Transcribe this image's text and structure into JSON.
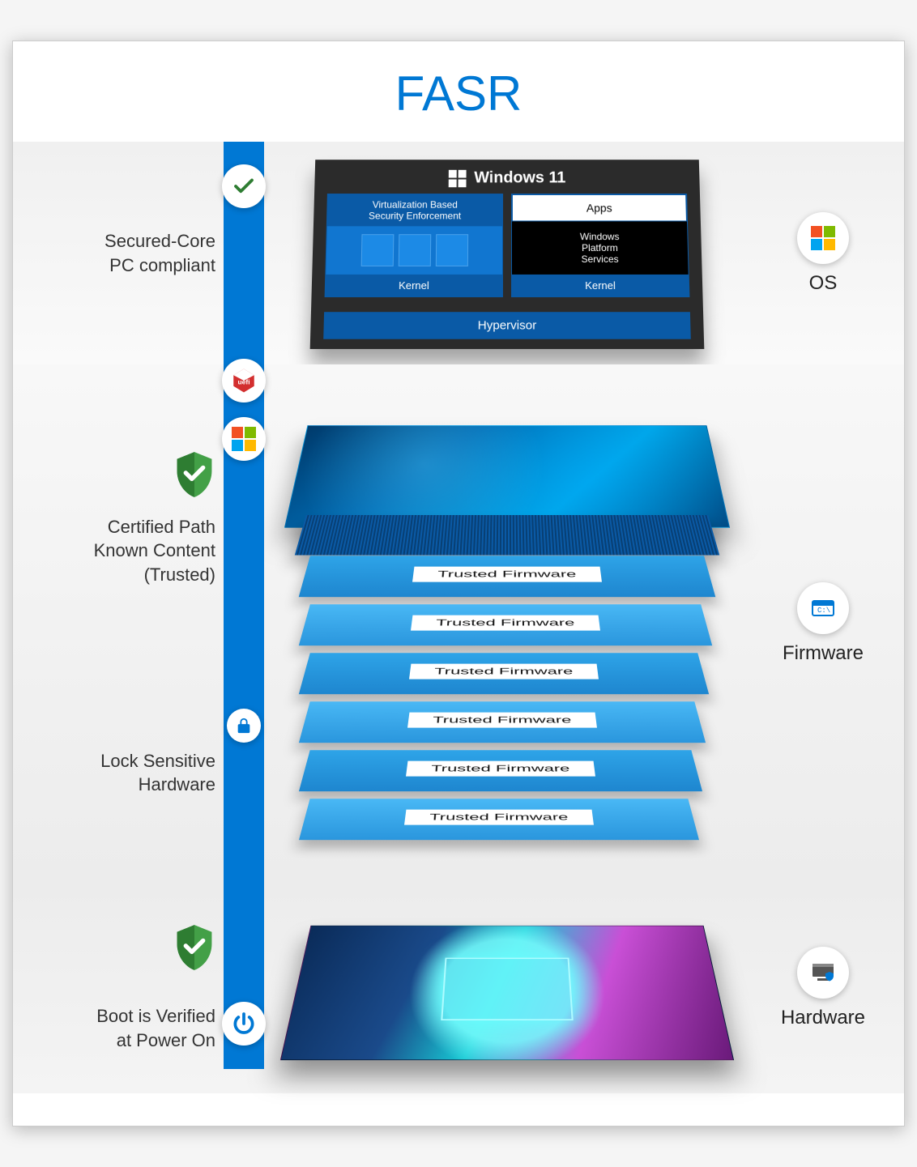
{
  "title": "FASR",
  "colors": {
    "accent": "#0078d4",
    "panel_dark": "#2b2b2b",
    "ms_blue": "#0a5aa6",
    "shield_green": "#4caf50",
    "shield_green_dark": "#2e7d32"
  },
  "layers": {
    "os": {
      "left_label_line1": "Secured-Core",
      "left_label_line2": "PC compliant",
      "right_label": "OS",
      "panel": {
        "header": "Windows 11",
        "vb_title_line1": "Virtualization Based",
        "vb_title_line2": "Security Enforcement",
        "kernel": "Kernel",
        "apps": "Apps",
        "wps_line1": "Windows",
        "wps_line2": "Platform",
        "wps_line3": "Services",
        "hypervisor": "Hypervisor"
      }
    },
    "firmware": {
      "left_label_line1": "Certified Path",
      "left_label_line2": "Known Content",
      "left_label_line3": "(Trusted)",
      "lock_label_line1": "Lock Sensitive",
      "lock_label_line2": "Hardware",
      "right_label": "Firmware",
      "trusted_label": "Trusted Firmware",
      "trusted_count": 6
    },
    "hardware": {
      "left_label_line1": "Boot is Verified",
      "left_label_line2": "at Power On",
      "right_label": "Hardware"
    }
  },
  "badges": {
    "check_top": "check-icon",
    "uefi": "uefi-icon",
    "ms": "microsoft-icon",
    "lock": "lock-icon",
    "power": "power-icon"
  }
}
